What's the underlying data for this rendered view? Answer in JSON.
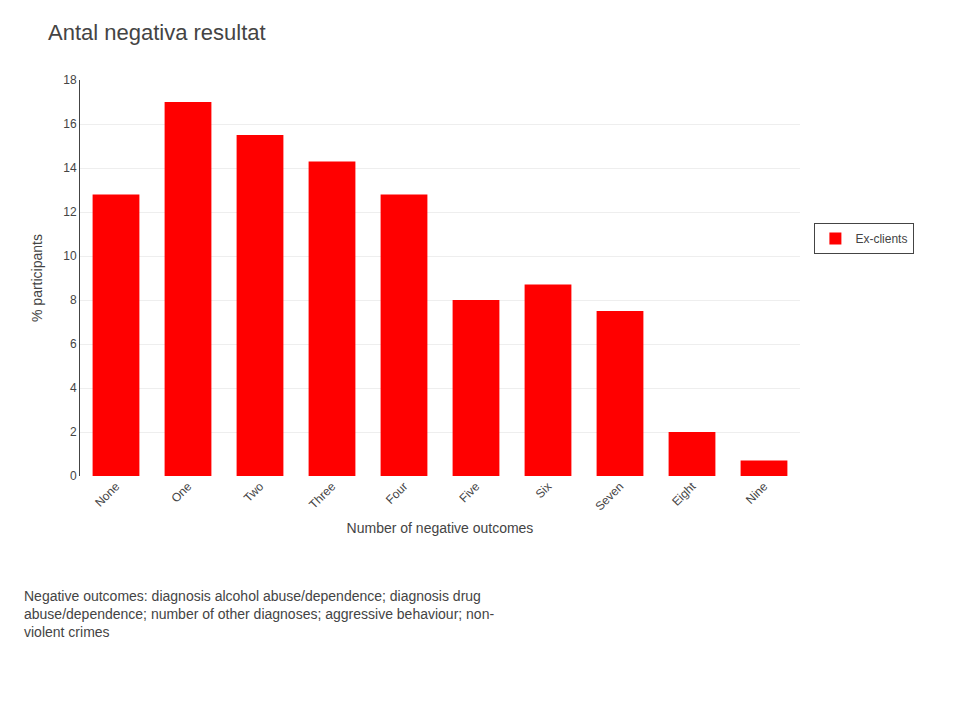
{
  "chart_data": {
    "type": "bar",
    "title": "Antal negativa resultat",
    "categories": [
      "None",
      "One",
      "Two",
      "Three",
      "Four",
      "Five",
      "Six",
      "Seven",
      "Eight",
      "Nine"
    ],
    "series": [
      {
        "name": "Ex-clients",
        "color": "#ff0000",
        "values": [
          12.8,
          17.0,
          15.5,
          14.3,
          12.8,
          8.0,
          8.7,
          7.5,
          2.0,
          0.7
        ]
      }
    ],
    "xlabel": "Number of negative outcomes",
    "ylabel": "% participants",
    "ylim": [
      0,
      18
    ],
    "yticks": [
      0,
      2,
      4,
      6,
      8,
      10,
      12,
      14,
      16,
      18
    ],
    "grid": true,
    "legend": "right",
    "annotations": [
      "Negative outcomes: diagnosis alcohol abuse/dependence; diagnosis drug\nabuse/dependence; number of other diagnoses; aggressive behaviour; non-\nviolent crimes"
    ]
  }
}
